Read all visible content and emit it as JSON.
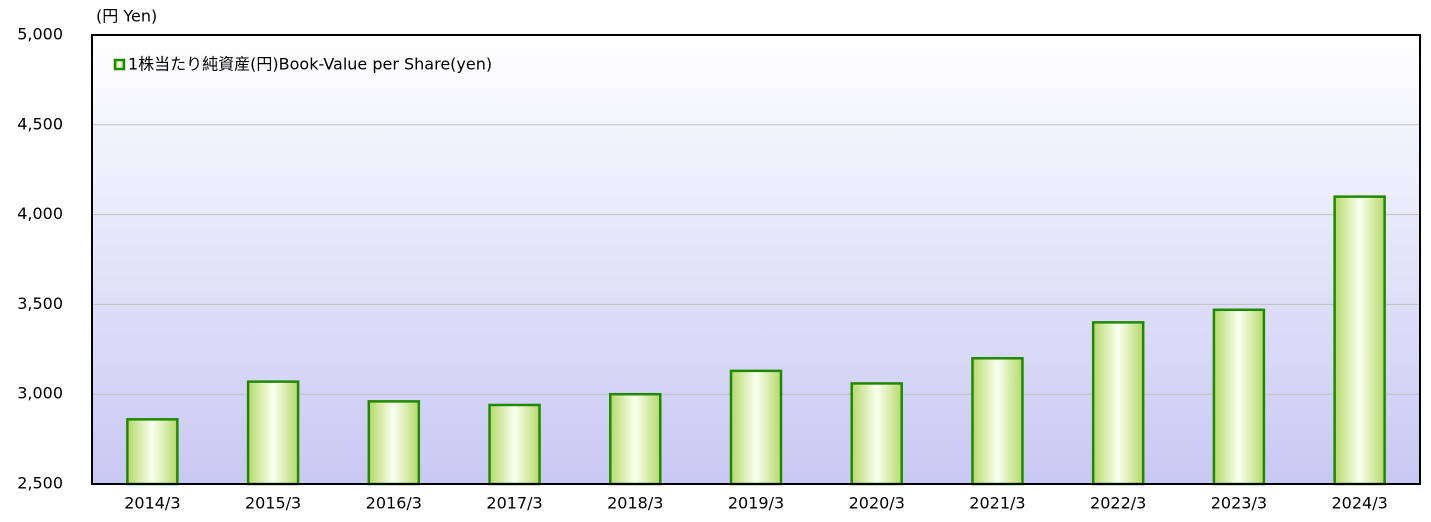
{
  "chart_data": {
    "type": "bar",
    "y_axis_label": "(円 Yen)",
    "categories": [
      "2014/3",
      "2015/3",
      "2016/3",
      "2017/3",
      "2018/3",
      "2019/3",
      "2020/3",
      "2021/3",
      "2022/3",
      "2023/3",
      "2024/3"
    ],
    "series": [
      {
        "name": "1株当たり純資産(円)Book-Value per Share(yen)",
        "color": "#1f8a00",
        "values": [
          2860,
          3070,
          2960,
          2940,
          3000,
          3130,
          3060,
          3200,
          3400,
          3470,
          4100
        ]
      }
    ],
    "ylim": [
      2500,
      5000
    ],
    "yticks": [
      {
        "value": 2500,
        "label": "2,500"
      },
      {
        "value": 3000,
        "label": "3,000"
      },
      {
        "value": 3500,
        "label": "3,500"
      },
      {
        "value": 4000,
        "label": "4,000"
      },
      {
        "value": 4500,
        "label": "4,500"
      },
      {
        "value": 5000,
        "label": "5,000"
      }
    ],
    "grid": true,
    "legend": "top-left"
  }
}
